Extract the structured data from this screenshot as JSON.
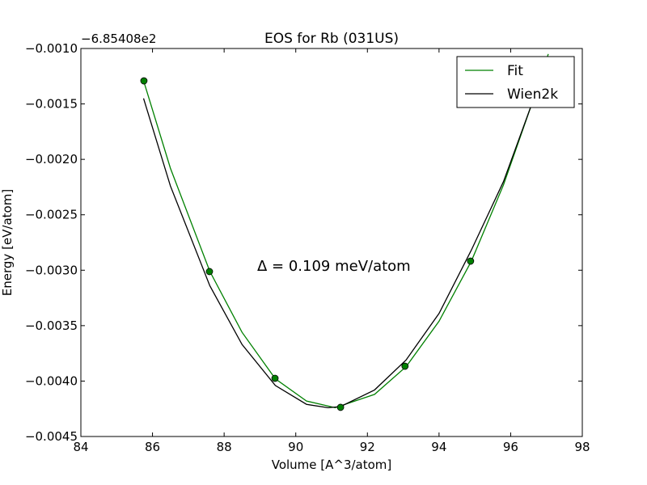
{
  "chart_data": {
    "type": "line",
    "title": "EOS for Rb (031US)",
    "offset_label": "−6.85408e2",
    "x_label": "Volume [A^3/atom]",
    "y_label": "Energy [eV/atom]",
    "annotation": "Δ = 0.109 meV/atom",
    "xlim": [
      84,
      98
    ],
    "xticks": [
      84,
      86,
      88,
      90,
      92,
      94,
      96,
      98
    ],
    "ylim": [
      -0.0045,
      -0.001
    ],
    "yticks": [
      {
        "value": -0.0045,
        "label": "−0.0045"
      },
      {
        "value": -0.004,
        "label": "−0.0040"
      },
      {
        "value": -0.0035,
        "label": "−0.0035"
      },
      {
        "value": -0.003,
        "label": "−0.0030"
      },
      {
        "value": -0.0025,
        "label": "−0.0025"
      },
      {
        "value": -0.002,
        "label": "−0.0020"
      },
      {
        "value": -0.0015,
        "label": "−0.0015"
      },
      {
        "value": -0.001,
        "label": "−0.0010"
      }
    ],
    "legend": "upper right",
    "series": [
      {
        "name": "Fit",
        "color": "#008000",
        "x": [
          85.75,
          86.5,
          87.6,
          88.5,
          89.43,
          90.3,
          91.1,
          92.2,
          93.08,
          94,
          94.9,
          95.8,
          96.85,
          97.05
        ],
        "values": [
          -0.00129,
          -0.00208,
          -0.00301,
          -0.00356,
          -0.00398,
          -0.00418,
          -0.00424,
          -0.00412,
          -0.00387,
          -0.00346,
          -0.00292,
          -0.00223,
          -0.00126,
          -0.00105
        ]
      },
      {
        "name": "Wien2k",
        "color": "#000000",
        "x": [
          85.75,
          86.5,
          87.6,
          88.5,
          89.43,
          90.3,
          90.9,
          91.25,
          92.2,
          93.08,
          94,
          94.9,
          95.8,
          96.85,
          97.05
        ],
        "values": [
          -0.00145,
          -0.00224,
          -0.00314,
          -0.00367,
          -0.00404,
          -0.00421,
          -0.00424,
          -0.00423,
          -0.00408,
          -0.00381,
          -0.00339,
          -0.00282,
          -0.0022,
          -0.00127,
          -0.00108
        ]
      }
    ],
    "points": {
      "color": "#008000",
      "x": [
        85.76,
        87.59,
        89.42,
        91.25,
        93.05,
        94.88
      ],
      "values": [
        -0.001292,
        -0.003012,
        -0.003975,
        -0.004237,
        -0.003866,
        -0.002918
      ]
    }
  }
}
